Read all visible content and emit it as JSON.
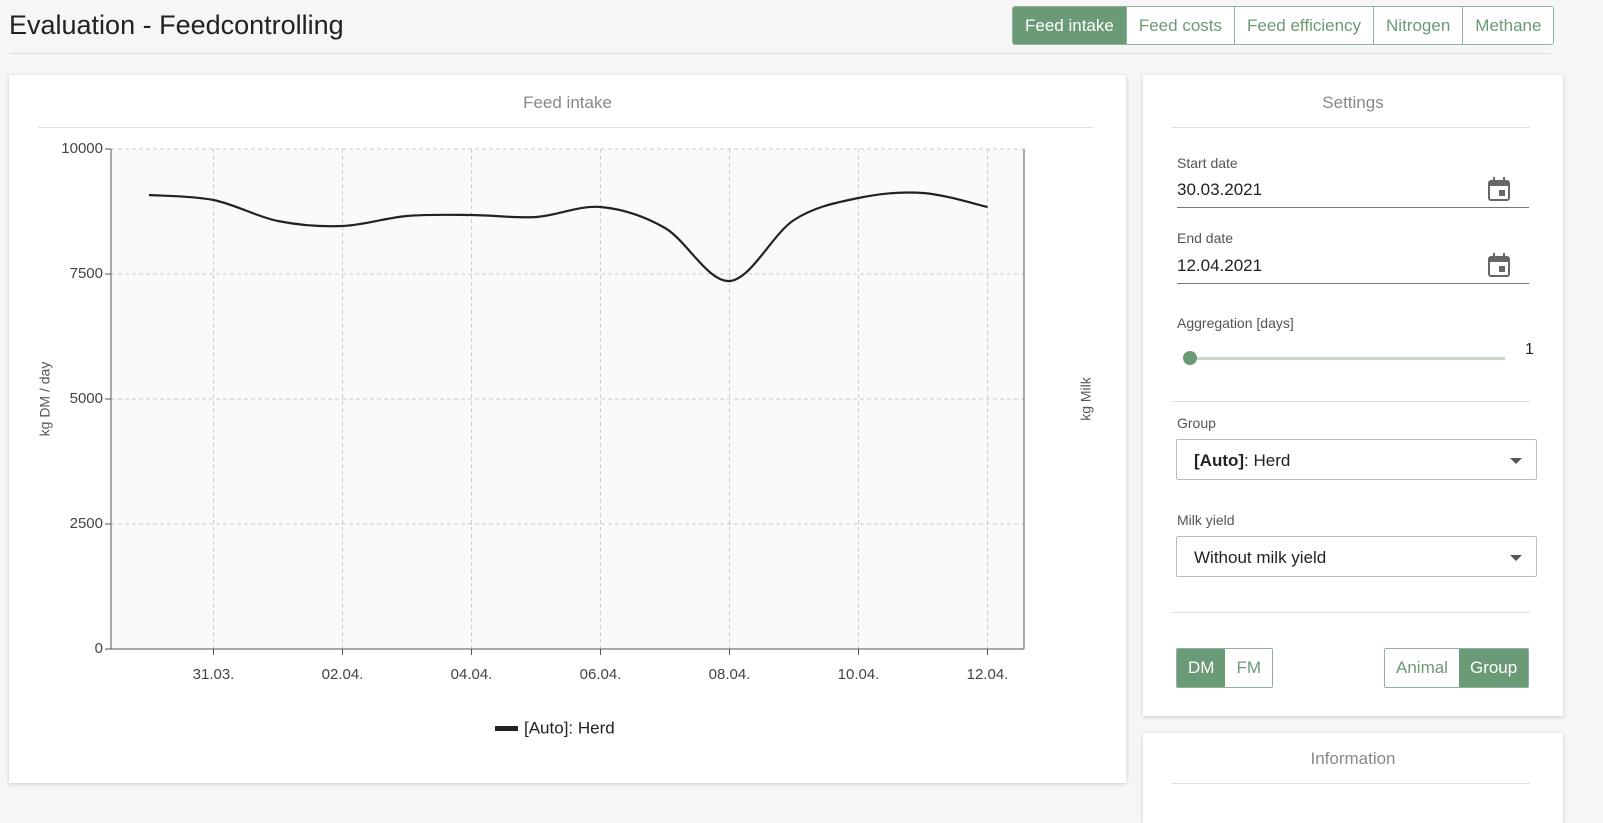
{
  "header": {
    "title": "Evaluation - Feedcontrolling",
    "tabs": [
      {
        "label": "Feed intake",
        "active": true
      },
      {
        "label": "Feed costs",
        "active": false
      },
      {
        "label": "Feed efficiency",
        "active": false
      },
      {
        "label": "Nitrogen",
        "active": false
      },
      {
        "label": "Methane",
        "active": false
      }
    ]
  },
  "chart_data": {
    "type": "line",
    "title": "Feed intake",
    "categories": [
      null,
      "31.03.",
      null,
      "02.04.",
      null,
      "04.04.",
      null,
      "06.04.",
      null,
      "08.04.",
      null,
      "10.04.",
      null,
      "12.04."
    ],
    "series": [
      {
        "name": "[Auto]: Herd",
        "color": "#222222",
        "values": [
          9080,
          8980,
          8560,
          8460,
          8660,
          8680,
          8640,
          8840,
          8420,
          7360,
          8580,
          9020,
          9120,
          8840
        ]
      }
    ],
    "ylim": [
      0,
      10000
    ],
    "yticks": [
      0,
      2500,
      5000,
      7500,
      10000
    ],
    "ylabel": "kg DM / day",
    "y2label": "kg Milk",
    "grid": true
  },
  "settings": {
    "title": "Settings",
    "start_date": {
      "label": "Start date",
      "value": "30.03.2021"
    },
    "end_date": {
      "label": "End date",
      "value": "12.04.2021"
    },
    "aggregation": {
      "label": "Aggregation [days]",
      "value": 1
    },
    "group": {
      "label": "Group",
      "value_bold": "[Auto]",
      "value_rest": ": Herd"
    },
    "milk_yield": {
      "label": "Milk yield",
      "value": "Without milk yield"
    },
    "unit_toggle": [
      {
        "label": "DM",
        "active": true
      },
      {
        "label": "FM",
        "active": false
      }
    ],
    "level_toggle": [
      {
        "label": "Animal",
        "active": false
      },
      {
        "label": "Group",
        "active": true
      }
    ]
  },
  "information": {
    "title": "Information"
  }
}
